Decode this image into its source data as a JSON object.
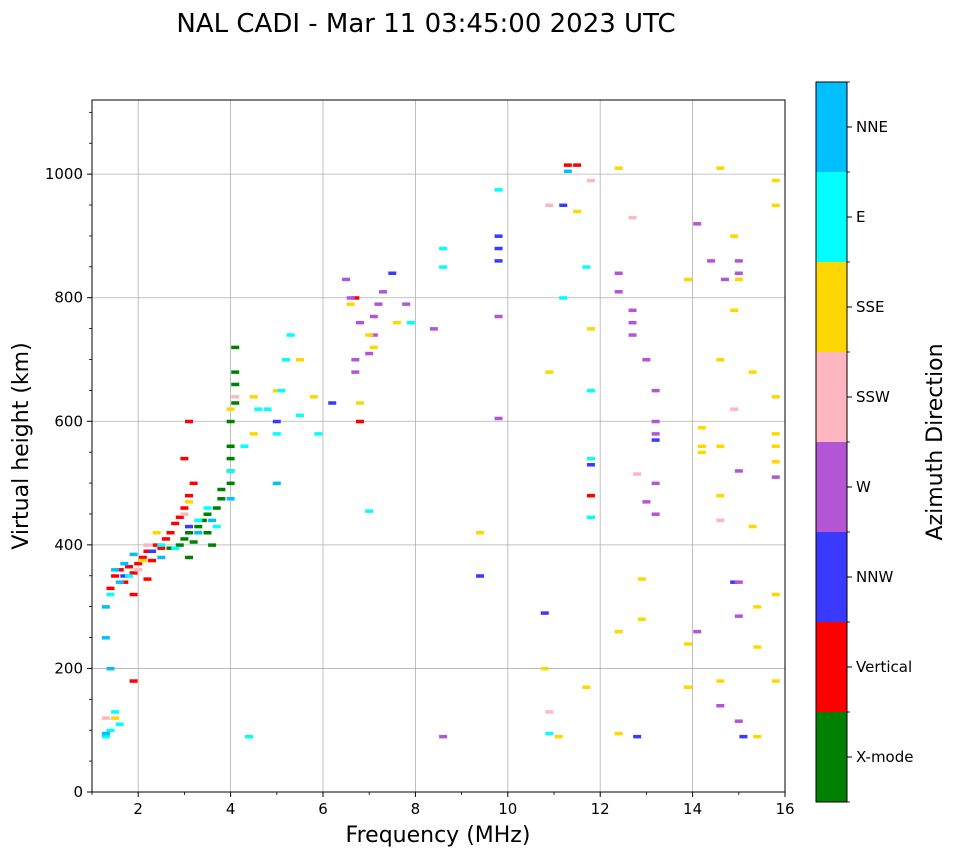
{
  "chart_data": {
    "type": "scatter",
    "title": "NAL CADI - Mar 11 03:45:00 2023 UTC",
    "xlabel": "Frequency (MHz)",
    "ylabel": "Virtual height (km)",
    "xlim": [
      1,
      16
    ],
    "ylim": [
      0,
      1120
    ],
    "xticks": [
      "2",
      "4",
      "6",
      "8",
      "10",
      "12",
      "14",
      "16"
    ],
    "yticks": [
      "0",
      "200",
      "400",
      "600",
      "800",
      "1000"
    ],
    "grid": true,
    "colorbar": {
      "label": "Azimuth Direction",
      "categories": [
        {
          "name": "X-mode",
          "color": "#008000"
        },
        {
          "name": "Vertical",
          "color": "#ff0000"
        },
        {
          "name": "NNW",
          "color": "#3a3aff"
        },
        {
          "name": "W",
          "color": "#b455d6"
        },
        {
          "name": "SSW",
          "color": "#ffb6c1"
        },
        {
          "name": "SSE",
          "color": "#ffd700"
        },
        {
          "name": "E",
          "color": "#00ffff"
        },
        {
          "name": "NNE",
          "color": "#00bfff"
        }
      ]
    },
    "series": [
      {
        "name": "X-mode",
        "points": [
          [
            2.9,
            400
          ],
          [
            3.0,
            410
          ],
          [
            3.1,
            420
          ],
          [
            3.2,
            405
          ],
          [
            3.3,
            430
          ],
          [
            3.4,
            440
          ],
          [
            3.5,
            420
          ],
          [
            3.5,
            450
          ],
          [
            3.7,
            460
          ],
          [
            3.8,
            475
          ],
          [
            3.8,
            490
          ],
          [
            4.0,
            500
          ],
          [
            4.0,
            520
          ],
          [
            4.0,
            540
          ],
          [
            4.0,
            560
          ],
          [
            4.0,
            600
          ],
          [
            4.1,
            630
          ],
          [
            4.1,
            680
          ],
          [
            4.1,
            720
          ],
          [
            4.1,
            660
          ],
          [
            3.6,
            400
          ],
          [
            2.7,
            395
          ],
          [
            3.1,
            380
          ]
        ]
      },
      {
        "name": "Vertical",
        "points": [
          [
            1.5,
            350
          ],
          [
            1.6,
            360
          ],
          [
            1.7,
            340
          ],
          [
            1.8,
            365
          ],
          [
            1.9,
            355
          ],
          [
            2.0,
            370
          ],
          [
            2.1,
            380
          ],
          [
            2.2,
            390
          ],
          [
            2.3,
            375
          ],
          [
            2.4,
            400
          ],
          [
            2.5,
            395
          ],
          [
            2.6,
            410
          ],
          [
            2.7,
            420
          ],
          [
            2.8,
            435
          ],
          [
            2.9,
            445
          ],
          [
            3.0,
            460
          ],
          [
            3.1,
            480
          ],
          [
            3.2,
            500
          ],
          [
            3.0,
            540
          ],
          [
            3.1,
            600
          ],
          [
            1.4,
            330
          ],
          [
            1.9,
            320
          ],
          [
            2.2,
            345
          ],
          [
            1.9,
            180
          ],
          [
            6.7,
            800
          ],
          [
            6.8,
            600
          ],
          [
            11.3,
            1015
          ],
          [
            11.5,
            1015
          ],
          [
            11.8,
            480
          ]
        ]
      },
      {
        "name": "NNW",
        "points": [
          [
            1.7,
            350
          ],
          [
            2.3,
            390
          ],
          [
            3.1,
            430
          ],
          [
            5.0,
            600
          ],
          [
            6.2,
            630
          ],
          [
            7.5,
            840
          ],
          [
            9.4,
            350
          ],
          [
            9.8,
            900
          ],
          [
            9.8,
            860
          ],
          [
            9.8,
            880
          ],
          [
            10.8,
            290
          ],
          [
            11.2,
            950
          ],
          [
            11.8,
            530
          ],
          [
            12.8,
            90
          ],
          [
            13.2,
            570
          ],
          [
            14.9,
            340
          ],
          [
            15.1,
            90
          ]
        ]
      },
      {
        "name": "W",
        "points": [
          [
            6.5,
            830
          ],
          [
            6.6,
            800
          ],
          [
            6.7,
            700
          ],
          [
            6.7,
            680
          ],
          [
            6.8,
            760
          ],
          [
            7.0,
            710
          ],
          [
            7.1,
            740
          ],
          [
            7.1,
            770
          ],
          [
            7.2,
            790
          ],
          [
            7.3,
            810
          ],
          [
            7.8,
            790
          ],
          [
            8.4,
            750
          ],
          [
            8.6,
            90
          ],
          [
            9.8,
            770
          ],
          [
            9.8,
            605
          ],
          [
            12.4,
            840
          ],
          [
            12.4,
            810
          ],
          [
            12.7,
            780
          ],
          [
            12.7,
            760
          ],
          [
            12.7,
            740
          ],
          [
            13.0,
            700
          ],
          [
            13.0,
            470
          ],
          [
            13.2,
            650
          ],
          [
            13.2,
            600
          ],
          [
            13.2,
            580
          ],
          [
            13.2,
            500
          ],
          [
            13.2,
            450
          ],
          [
            14.1,
            920
          ],
          [
            14.1,
            260
          ],
          [
            14.4,
            860
          ],
          [
            14.7,
            830
          ],
          [
            15.0,
            860
          ],
          [
            15.0,
            840
          ],
          [
            15.0,
            520
          ],
          [
            15.0,
            340
          ],
          [
            15.0,
            285
          ],
          [
            15.0,
            115
          ],
          [
            14.6,
            140
          ],
          [
            15.8,
            510
          ]
        ]
      },
      {
        "name": "SSW",
        "points": [
          [
            1.3,
            120
          ],
          [
            2.0,
            360
          ],
          [
            2.2,
            400
          ],
          [
            3.0,
            450
          ],
          [
            4.1,
            640
          ],
          [
            10.9,
            130
          ],
          [
            10.9,
            950
          ],
          [
            11.8,
            990
          ],
          [
            12.7,
            930
          ],
          [
            12.8,
            515
          ],
          [
            14.6,
            440
          ],
          [
            14.9,
            620
          ]
        ]
      },
      {
        "name": "SSE",
        "points": [
          [
            1.5,
            120
          ],
          [
            2.1,
            375
          ],
          [
            2.4,
            420
          ],
          [
            3.1,
            470
          ],
          [
            4.0,
            620
          ],
          [
            4.5,
            580
          ],
          [
            4.5,
            640
          ],
          [
            5.0,
            650
          ],
          [
            5.5,
            700
          ],
          [
            5.8,
            640
          ],
          [
            6.6,
            790
          ],
          [
            6.8,
            630
          ],
          [
            7.0,
            740
          ],
          [
            7.1,
            720
          ],
          [
            7.6,
            760
          ],
          [
            9.4,
            420
          ],
          [
            10.9,
            680
          ],
          [
            11.5,
            940
          ],
          [
            11.8,
            750
          ],
          [
            12.4,
            1010
          ],
          [
            12.4,
            260
          ],
          [
            12.4,
            95
          ],
          [
            12.9,
            345
          ],
          [
            12.9,
            280
          ],
          [
            13.9,
            830
          ],
          [
            13.9,
            240
          ],
          [
            13.9,
            170
          ],
          [
            14.2,
            590
          ],
          [
            14.2,
            560
          ],
          [
            14.2,
            550
          ],
          [
            14.6,
            1010
          ],
          [
            14.6,
            700
          ],
          [
            14.6,
            560
          ],
          [
            14.6,
            480
          ],
          [
            14.6,
            180
          ],
          [
            14.9,
            900
          ],
          [
            14.9,
            780
          ],
          [
            15.0,
            830
          ],
          [
            15.3,
            430
          ],
          [
            15.4,
            300
          ],
          [
            15.4,
            235
          ],
          [
            15.4,
            90
          ],
          [
            15.8,
            990
          ],
          [
            15.8,
            950
          ],
          [
            15.8,
            640
          ],
          [
            15.8,
            580
          ],
          [
            15.8,
            560
          ],
          [
            15.8,
            535
          ],
          [
            15.8,
            320
          ],
          [
            15.8,
            180
          ],
          [
            15.3,
            680
          ],
          [
            10.8,
            200
          ],
          [
            11.7,
            170
          ],
          [
            11.1,
            90
          ]
        ]
      },
      {
        "name": "E",
        "points": [
          [
            1.3,
            90
          ],
          [
            1.4,
            100
          ],
          [
            1.5,
            130
          ],
          [
            1.6,
            110
          ],
          [
            1.4,
            320
          ],
          [
            1.8,
            350
          ],
          [
            2.5,
            400
          ],
          [
            2.8,
            395
          ],
          [
            3.3,
            440
          ],
          [
            3.5,
            460
          ],
          [
            3.7,
            430
          ],
          [
            4.0,
            520
          ],
          [
            4.3,
            560
          ],
          [
            4.4,
            90
          ],
          [
            4.8,
            620
          ],
          [
            5.0,
            580
          ],
          [
            5.1,
            650
          ],
          [
            5.2,
            700
          ],
          [
            5.3,
            740
          ],
          [
            5.5,
            610
          ],
          [
            5.9,
            580
          ],
          [
            7.9,
            760
          ],
          [
            8.6,
            880
          ],
          [
            8.6,
            850
          ],
          [
            9.8,
            975
          ],
          [
            10.9,
            95
          ],
          [
            11.2,
            800
          ],
          [
            11.7,
            850
          ],
          [
            11.8,
            650
          ],
          [
            11.8,
            540
          ],
          [
            11.8,
            445
          ],
          [
            7.0,
            455
          ],
          [
            4.6,
            620
          ]
        ]
      },
      {
        "name": "NNE",
        "points": [
          [
            1.3,
            95
          ],
          [
            1.3,
            300
          ],
          [
            1.5,
            360
          ],
          [
            1.6,
            340
          ],
          [
            1.7,
            370
          ],
          [
            1.9,
            385
          ],
          [
            2.5,
            380
          ],
          [
            3.3,
            420
          ],
          [
            3.6,
            440
          ],
          [
            4.0,
            475
          ],
          [
            5.0,
            500
          ],
          [
            11.3,
            1005
          ],
          [
            1.3,
            250
          ],
          [
            1.4,
            200
          ]
        ]
      }
    ]
  }
}
